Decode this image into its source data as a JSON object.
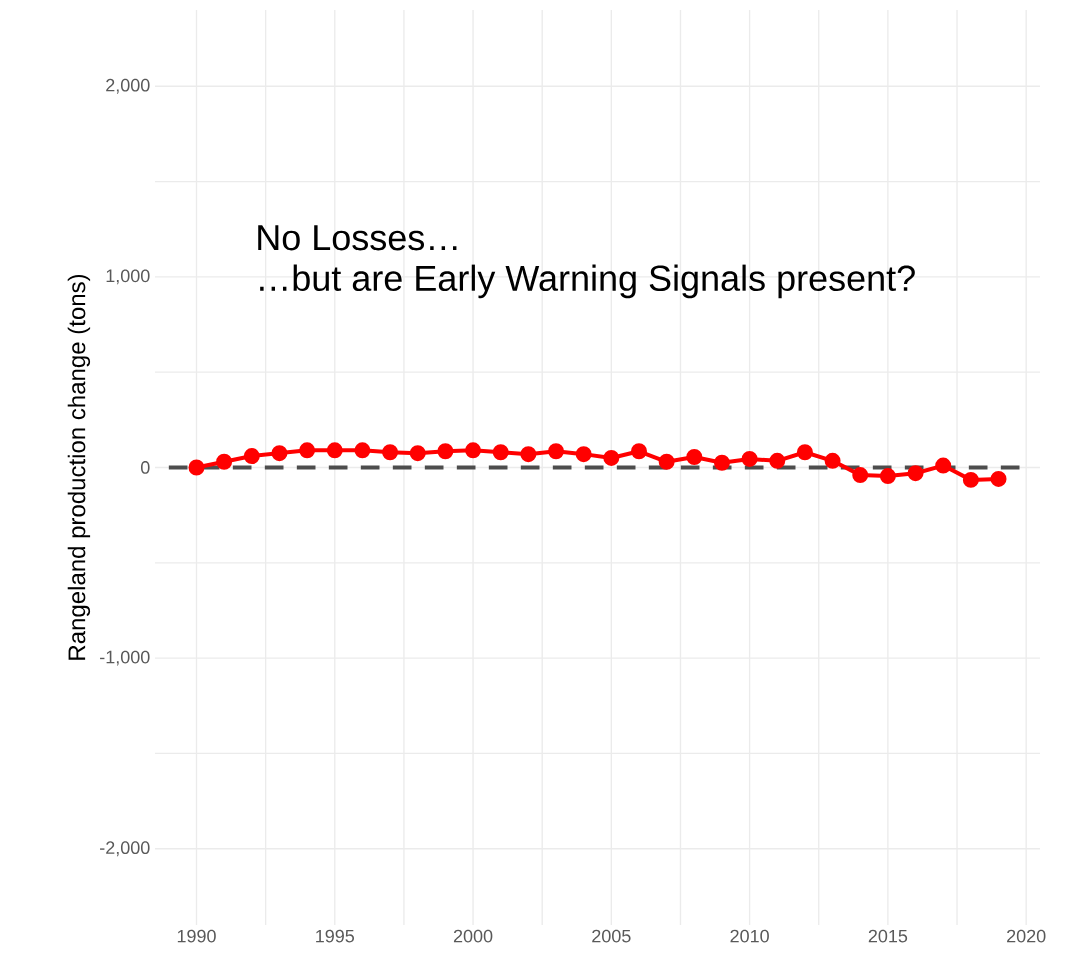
{
  "chart_data": {
    "type": "line",
    "ylabel": "Rangeland production change (tons)",
    "x": [
      1990,
      1991,
      1992,
      1993,
      1994,
      1995,
      1996,
      1997,
      1998,
      1999,
      2000,
      2001,
      2002,
      2003,
      2004,
      2005,
      2006,
      2007,
      2008,
      2009,
      2010,
      2011,
      2012,
      2013,
      2014,
      2015,
      2016,
      2017,
      2018,
      2019
    ],
    "series": [
      {
        "color": "#ff0000",
        "values": [
          0,
          30,
          60,
          75,
          90,
          90,
          90,
          80,
          75,
          85,
          90,
          80,
          70,
          85,
          70,
          50,
          85,
          30,
          55,
          25,
          45,
          35,
          80,
          35,
          -40,
          -45,
          -30,
          10,
          -65,
          -60
        ]
      }
    ],
    "xlim": [
      1988.5,
      2020.5
    ],
    "xticks": [
      1990,
      1995,
      2000,
      2005,
      2010,
      2015,
      2020
    ],
    "ylim": [
      -2400,
      2400
    ],
    "yticks": [
      {
        "value": -2000,
        "label": "-2,000"
      },
      {
        "value": -1000,
        "label": "-1,000"
      },
      0,
      {
        "value": 1000,
        "label": "1,000"
      },
      {
        "value": 2000,
        "label": "2,000"
      }
    ],
    "ref_lines": [
      {
        "axis": "y",
        "value": 0,
        "color": "#4d4d4d",
        "line_style": "dashed"
      }
    ],
    "annotations": [
      "No Losses…",
      "…but are Early Warning Signals present?"
    ],
    "grid": true,
    "marker": "circle",
    "line_style": "solid"
  }
}
